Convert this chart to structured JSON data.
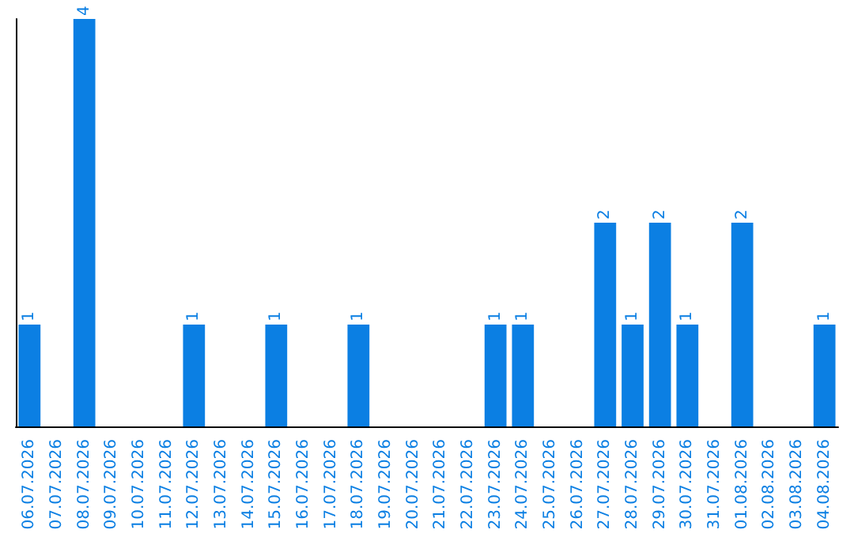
{
  "chart_data": {
    "type": "bar",
    "categories": [
      "06.07.2026",
      "07.07.2026",
      "08.07.2026",
      "09.07.2026",
      "10.07.2026",
      "11.07.2026",
      "12.07.2026",
      "13.07.2026",
      "14.07.2026",
      "15.07.2026",
      "16.07.2026",
      "17.07.2026",
      "18.07.2026",
      "19.07.2026",
      "20.07.2026",
      "21.07.2026",
      "22.07.2026",
      "23.07.2026",
      "24.07.2026",
      "25.07.2026",
      "26.07.2026",
      "27.07.2026",
      "28.07.2026",
      "29.07.2026",
      "30.07.2026",
      "31.07.2026",
      "01.08.2026",
      "02.08.2026",
      "03.08.2026",
      "04.08.2026"
    ],
    "values": [
      1,
      null,
      4,
      null,
      null,
      null,
      1,
      null,
      null,
      1,
      null,
      null,
      1,
      null,
      null,
      null,
      null,
      1,
      1,
      null,
      null,
      2,
      1,
      2,
      1,
      null,
      2,
      null,
      null,
      1
    ],
    "color": "#0b7fe3",
    "data_labels": true,
    "tick_labels": "x"
  }
}
